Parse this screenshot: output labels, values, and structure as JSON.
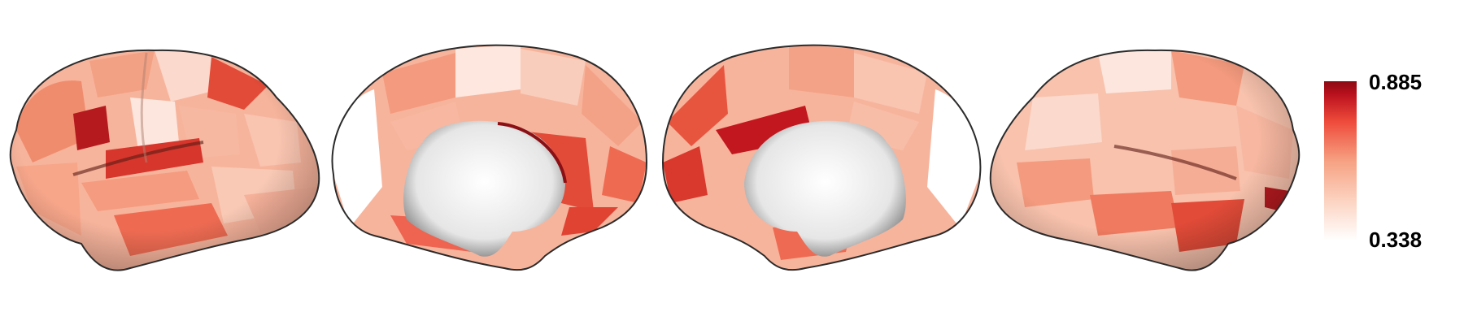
{
  "figure": {
    "views": [
      {
        "name": "left-lateral"
      },
      {
        "name": "left-medial"
      },
      {
        "name": "right-medial"
      },
      {
        "name": "right-lateral"
      }
    ],
    "colorbar": {
      "max_label": "0.885",
      "min_label": "0.338",
      "max_value": 0.885,
      "min_value": 0.338,
      "colors": [
        "#ffffff",
        "#fcd3c1",
        "#f6a182",
        "#ee4a3a",
        "#b9101d",
        "#8b0b13"
      ]
    }
  }
}
